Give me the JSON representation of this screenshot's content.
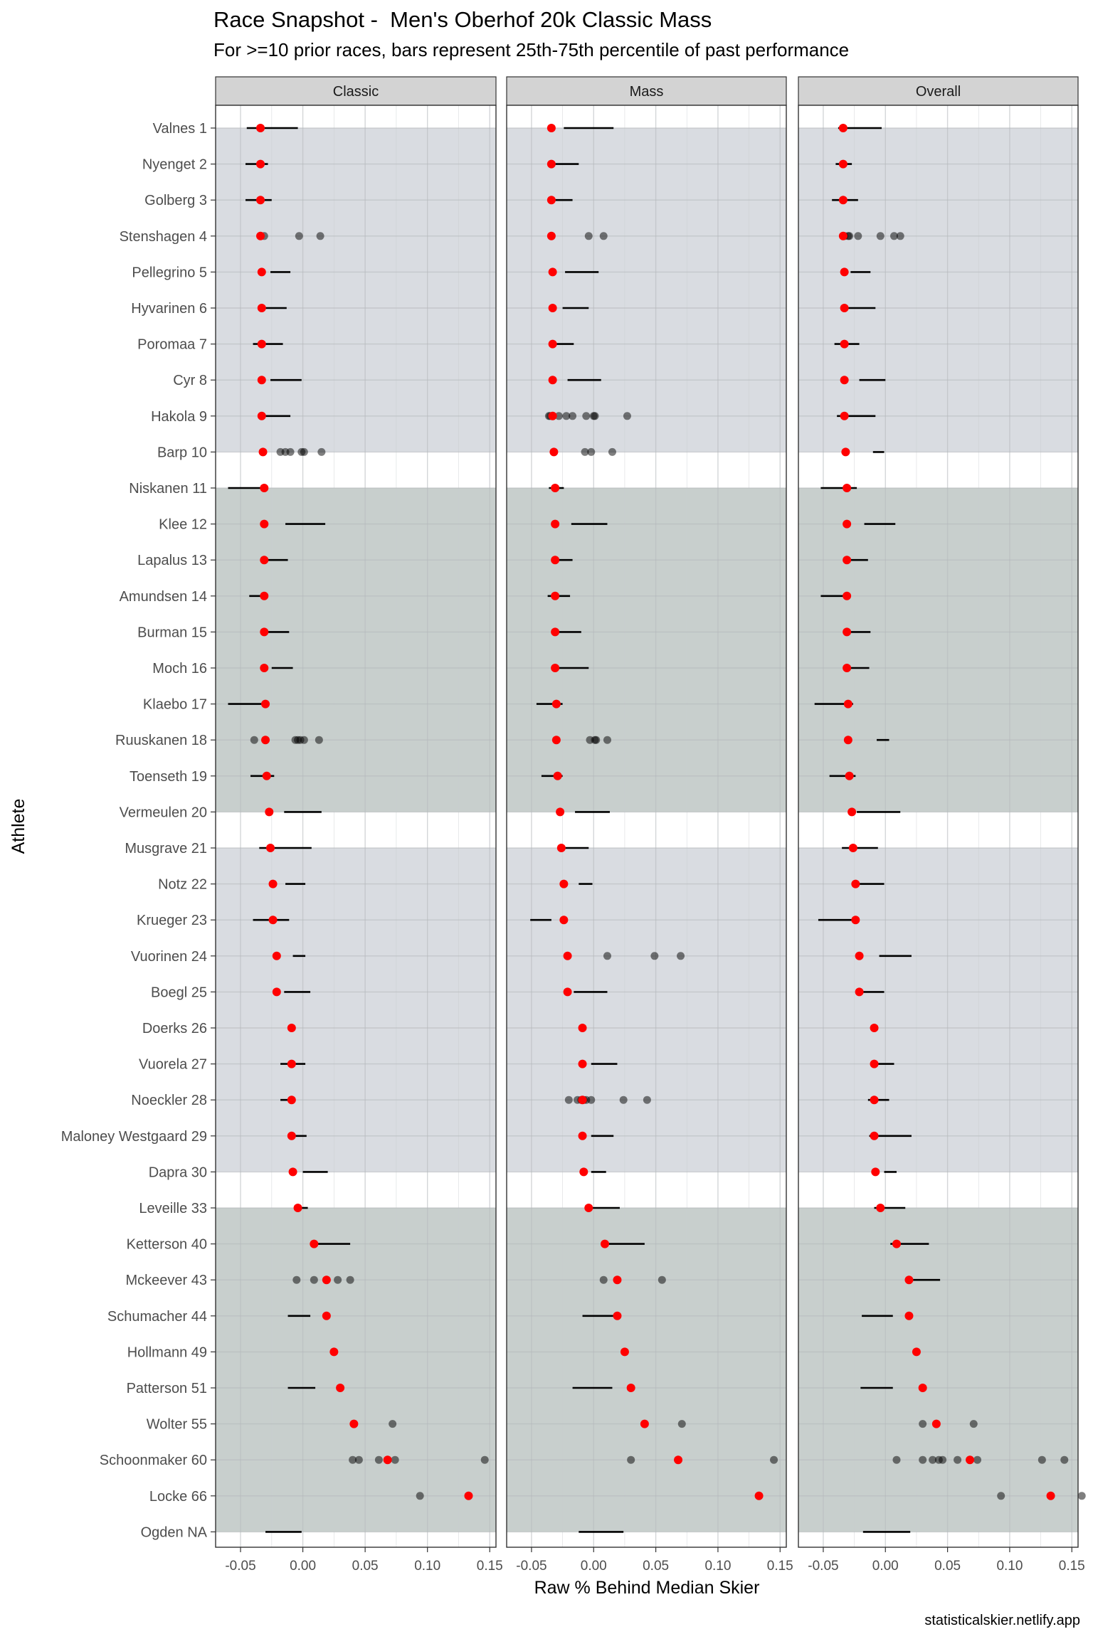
{
  "title": "Race Snapshot -  Men's Oberhof 20k Classic Mass",
  "subtitle": "For >=10 prior races, bars represent 25th-75th percentile of past performance",
  "credit": "statisticalskier.netlify.app",
  "colors": {
    "band_light": "#d9dce1",
    "band_dark": "#c8cfcd",
    "strip_fill": "#d3d3d3",
    "grid": "#ebebeb",
    "point_current": "#ff0000",
    "point_past": "#000000"
  },
  "chart_data": {
    "type": "scatter",
    "xlabel": "Raw % Behind Median Skier",
    "ylabel": "Athlete",
    "xlim": [
      -0.07,
      0.155
    ],
    "xticks": [
      -0.05,
      0.0,
      0.05,
      0.1,
      0.15
    ],
    "xtick_labels": [
      "-0.05",
      "0.00",
      "0.05",
      "0.10",
      "0.15"
    ],
    "grid": true,
    "facets": [
      "Classic",
      "Mass",
      "Overall"
    ],
    "athletes": [
      "Valnes 1",
      "Nyenget 2",
      "Golberg 3",
      "Stenshagen 4",
      "Pellegrino 5",
      "Hyvarinen 6",
      "Poromaa 7",
      "Cyr 8",
      "Hakola 9",
      "Barp 10",
      "Niskanen 11",
      "Klee 12",
      "Lapalus 13",
      "Amundsen 14",
      "Burman 15",
      "Moch 16",
      "Klaebo 17",
      "Ruuskanen 18",
      "Toenseth 19",
      "Vermeulen 20",
      "Musgrave 21",
      "Notz 22",
      "Krueger 23",
      "Vuorinen 24",
      "Boegl 25",
      "Doerks 26",
      "Vuorela 27",
      "Noeckler 28",
      "Maloney Westgaard 29",
      "Dapra 30",
      "Leveille 33",
      "Ketterson 40",
      "Mckeever 43",
      "Schumacher 44",
      "Hollmann 49",
      "Patterson 51",
      "Wolter 55",
      "Schoonmaker 60",
      "Locke 66",
      "Ogden NA"
    ],
    "bands": [
      {
        "from": 0,
        "to": 9,
        "shade": "light"
      },
      {
        "from": 10,
        "to": 19,
        "shade": "dark"
      },
      {
        "from": 20,
        "to": 29,
        "shade": "light"
      },
      {
        "from": 30,
        "to": 39,
        "shade": "dark"
      }
    ],
    "current": [
      -0.034,
      -0.034,
      -0.034,
      -0.034,
      -0.033,
      -0.033,
      -0.033,
      -0.033,
      -0.033,
      -0.032,
      -0.031,
      -0.031,
      -0.031,
      -0.031,
      -0.031,
      -0.031,
      -0.03,
      -0.03,
      -0.029,
      -0.027,
      -0.026,
      -0.024,
      -0.024,
      -0.021,
      -0.021,
      -0.009,
      -0.009,
      -0.009,
      -0.009,
      -0.008,
      -0.004,
      0.009,
      0.019,
      0.019,
      0.025,
      0.03,
      0.041,
      0.068,
      0.133,
      null
    ],
    "panels": [
      {
        "name": "Classic",
        "bars": [
          [
            -0.045,
            -0.004
          ],
          [
            -0.046,
            -0.028
          ],
          [
            -0.046,
            -0.025
          ],
          null,
          [
            -0.026,
            -0.01
          ],
          [
            -0.032,
            -0.013
          ],
          [
            -0.04,
            -0.016
          ],
          [
            -0.026,
            -0.001
          ],
          [
            -0.033,
            -0.01
          ],
          null,
          [
            -0.06,
            -0.032
          ],
          [
            -0.014,
            0.018
          ],
          [
            -0.031,
            -0.012
          ],
          [
            -0.043,
            -0.031
          ],
          [
            -0.031,
            -0.011
          ],
          [
            -0.025,
            -0.008
          ],
          [
            -0.06,
            -0.03
          ],
          null,
          [
            -0.042,
            -0.023
          ],
          [
            -0.015,
            0.015
          ],
          [
            -0.035,
            0.007
          ],
          [
            -0.014,
            0.002
          ],
          [
            -0.04,
            -0.011
          ],
          [
            -0.008,
            0.002
          ],
          [
            -0.015,
            0.006
          ],
          null,
          [
            -0.018,
            0.002
          ],
          [
            -0.018,
            -0.006
          ],
          [
            -0.012,
            0.003
          ],
          [
            0.0,
            0.02
          ],
          [
            -0.004,
            0.004
          ],
          [
            0.008,
            0.038
          ],
          null,
          [
            -0.012,
            0.006
          ],
          null,
          [
            -0.012,
            0.01
          ],
          null,
          null,
          null,
          [
            -0.03,
            -0.001
          ]
        ],
        "past": [
          [],
          [],
          [],
          [
            -0.031,
            -0.003,
            0.014
          ],
          [],
          [],
          [],
          [],
          [],
          [
            -0.018,
            -0.014,
            -0.01,
            -0.001,
            0.001,
            0.015
          ],
          [],
          [],
          [],
          [],
          [],
          [],
          [],
          [
            -0.039,
            -0.006,
            -0.004,
            -0.002,
            0.001,
            0.013
          ],
          [],
          [],
          [],
          [],
          [],
          [],
          [],
          [],
          [],
          [],
          [],
          [],
          [],
          [],
          [
            -0.005,
            0.009,
            0.028,
            0.038
          ],
          [],
          [],
          [],
          [
            0.072
          ],
          [
            0.04,
            0.045,
            0.061,
            0.074,
            0.146
          ],
          [
            0.094
          ],
          []
        ]
      },
      {
        "name": "Mass",
        "bars": [
          [
            -0.024,
            0.016
          ],
          [
            -0.031,
            -0.012
          ],
          [
            -0.031,
            -0.017
          ],
          null,
          [
            -0.023,
            0.004
          ],
          [
            -0.025,
            -0.004
          ],
          [
            -0.036,
            -0.016
          ],
          [
            -0.021,
            0.006
          ],
          null,
          null,
          [
            -0.036,
            -0.024
          ],
          [
            -0.018,
            0.011
          ],
          [
            -0.03,
            -0.017
          ],
          [
            -0.037,
            -0.019
          ],
          [
            -0.031,
            -0.01
          ],
          [
            -0.031,
            -0.004
          ],
          [
            -0.046,
            -0.025
          ],
          null,
          [
            -0.042,
            -0.025
          ],
          [
            -0.015,
            0.013
          ],
          [
            -0.027,
            -0.004
          ],
          [
            -0.012,
            -0.001
          ],
          [
            -0.051,
            -0.034
          ],
          null,
          [
            -0.016,
            0.011
          ],
          null,
          [
            -0.002,
            0.019
          ],
          null,
          [
            -0.002,
            0.016
          ],
          [
            -0.002,
            0.01
          ],
          [
            -0.003,
            0.021
          ],
          [
            0.012,
            0.041
          ],
          null,
          [
            -0.009,
            0.016
          ],
          null,
          [
            -0.017,
            0.015
          ],
          null,
          null,
          null,
          [
            -0.012,
            0.024
          ]
        ],
        "past": [
          [],
          [],
          [],
          [
            -0.004,
            0.008
          ],
          [],
          [],
          [],
          [],
          [
            -0.036,
            -0.035,
            -0.028,
            -0.022,
            -0.017,
            -0.006,
            0.0,
            0.001,
            0.027
          ],
          [
            -0.007,
            -0.002,
            0.015
          ],
          [],
          [],
          [],
          [],
          [],
          [],
          [],
          [
            -0.03,
            -0.003,
            0.001,
            0.002,
            0.011
          ],
          [],
          [],
          [],
          [],
          [],
          [
            0.011,
            0.049,
            0.07
          ],
          [],
          [],
          [],
          [
            -0.02,
            -0.013,
            -0.01,
            -0.008,
            -0.006,
            -0.002,
            0.024,
            0.043
          ],
          [],
          [],
          [],
          [],
          [
            0.008,
            0.019,
            0.055
          ],
          [],
          [],
          [],
          [
            0.071
          ],
          [
            0.03,
            0.145
          ],
          [],
          []
        ]
      },
      {
        "name": "Overall",
        "bars": [
          [
            -0.038,
            -0.003
          ],
          [
            -0.04,
            -0.027
          ],
          [
            -0.043,
            -0.022
          ],
          null,
          [
            -0.028,
            -0.012
          ],
          [
            -0.035,
            -0.008
          ],
          [
            -0.041,
            -0.021
          ],
          [
            -0.021,
            0.0
          ],
          [
            -0.039,
            -0.008
          ],
          [
            -0.01,
            -0.001
          ],
          [
            -0.052,
            -0.023
          ],
          [
            -0.017,
            0.008
          ],
          [
            -0.03,
            -0.014
          ],
          [
            -0.052,
            -0.033
          ],
          [
            -0.031,
            -0.012
          ],
          [
            -0.029,
            -0.013
          ],
          [
            -0.057,
            -0.026
          ],
          [
            -0.007,
            0.003
          ],
          [
            -0.045,
            -0.024
          ],
          [
            -0.023,
            0.012
          ],
          [
            -0.035,
            -0.006
          ],
          [
            -0.023,
            -0.001
          ],
          [
            -0.054,
            -0.025
          ],
          [
            -0.005,
            0.021
          ],
          [
            -0.024,
            -0.001
          ],
          null,
          [
            -0.011,
            0.007
          ],
          [
            -0.014,
            0.003
          ],
          [
            -0.013,
            0.021
          ],
          [
            -0.001,
            0.009
          ],
          [
            -0.009,
            0.016
          ],
          [
            0.004,
            0.035
          ],
          [
            0.019,
            0.044
          ],
          [
            -0.019,
            0.006
          ],
          null,
          [
            -0.02,
            0.006
          ],
          null,
          null,
          null,
          [
            -0.018,
            0.02
          ]
        ],
        "past": [
          [],
          [],
          [],
          [
            -0.033,
            -0.03,
            -0.029,
            -0.022,
            -0.004,
            0.007,
            0.012
          ],
          [],
          [],
          [],
          [],
          [],
          [],
          [],
          [],
          [],
          [],
          [],
          [],
          [],
          [],
          [],
          [],
          [],
          [],
          [],
          [],
          [],
          [],
          [],
          [],
          [],
          [],
          [],
          [],
          [],
          [],
          [],
          [],
          [
            0.03,
            0.071
          ],
          [
            0.009,
            0.03,
            0.038,
            0.043,
            0.046,
            0.058,
            0.074,
            0.126,
            0.144
          ],
          [
            0.093,
            0.158
          ],
          []
        ]
      }
    ]
  }
}
